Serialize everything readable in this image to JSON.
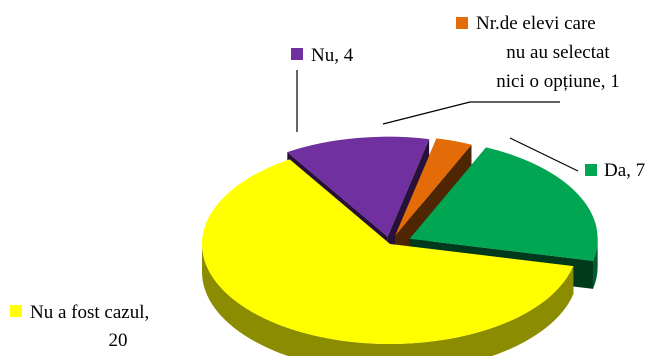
{
  "chart_data": {
    "type": "pie",
    "style": "3d-exploded",
    "slices": [
      {
        "label": "Da",
        "value": 7,
        "color": "#00A651"
      },
      {
        "label": "Nu a fost cazul",
        "value": 20,
        "color": "#FFFF00"
      },
      {
        "label": "Nu",
        "value": 4,
        "color": "#7030A0"
      },
      {
        "label": "Nr.de elevi care nu au selectat nici o opțiune",
        "value": 1,
        "color": "#E36C09"
      }
    ],
    "data_labels": [
      {
        "lines": [
          "Da, 7"
        ]
      },
      {
        "lines": [
          "Nu a fost cazul,",
          "20"
        ]
      },
      {
        "lines": [
          "Nu, 4"
        ]
      },
      {
        "lines": [
          "Nr.de elevi care",
          "nu au selectat",
          "nici o opțiune, 1"
        ]
      }
    ],
    "legend": "none"
  }
}
